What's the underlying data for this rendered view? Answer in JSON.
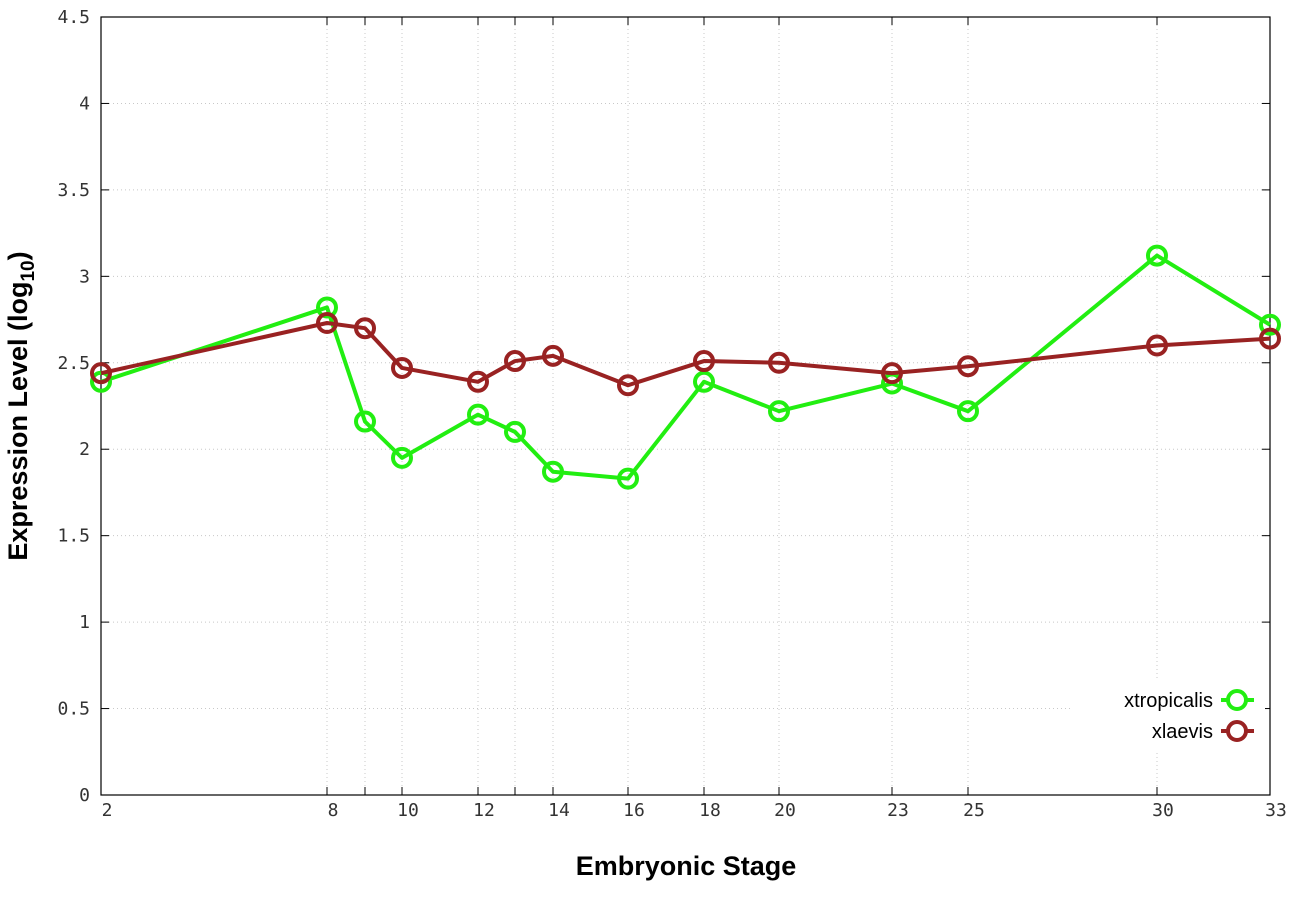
{
  "chart_data": {
    "type": "line",
    "xlabel": "Embryonic Stage",
    "ylabel_main": "Expression Level (log",
    "ylabel_sub": "10",
    "ylabel_close": ")",
    "x_categories": [
      "2",
      "8",
      "9",
      "10",
      "12",
      "13",
      "14",
      "16",
      "18",
      "20",
      "23",
      "25",
      "30",
      "33"
    ],
    "x_tick_labels": [
      "2",
      "8",
      "10",
      "12",
      "14",
      "16",
      "18",
      "20",
      "23",
      "25",
      "30",
      "33"
    ],
    "y_ticks": [
      "0",
      "0.5",
      "1",
      "1.5",
      "2",
      "2.5",
      "3",
      "3.5",
      "4",
      "4.5"
    ],
    "ylim": [
      0,
      4.5
    ],
    "grid": true,
    "legend_position": "bottom-right",
    "series": [
      {
        "name": "xtropicalis",
        "color": "#22ee11",
        "x": [
          2,
          8,
          9,
          10,
          12,
          13,
          14,
          16,
          18,
          20,
          23,
          25,
          30,
          33
        ],
        "values": [
          2.39,
          2.82,
          2.16,
          1.95,
          2.2,
          2.1,
          1.87,
          1.83,
          2.39,
          2.22,
          2.38,
          2.22,
          3.12,
          2.72
        ]
      },
      {
        "name": "xlaevis",
        "color": "#992222",
        "x": [
          2,
          8,
          9,
          10,
          12,
          13,
          14,
          16,
          18,
          20,
          23,
          25,
          30,
          33
        ],
        "values": [
          2.44,
          2.73,
          2.7,
          2.47,
          2.39,
          2.51,
          2.54,
          2.37,
          2.51,
          2.5,
          2.44,
          2.48,
          2.6,
          2.64
        ]
      }
    ]
  }
}
